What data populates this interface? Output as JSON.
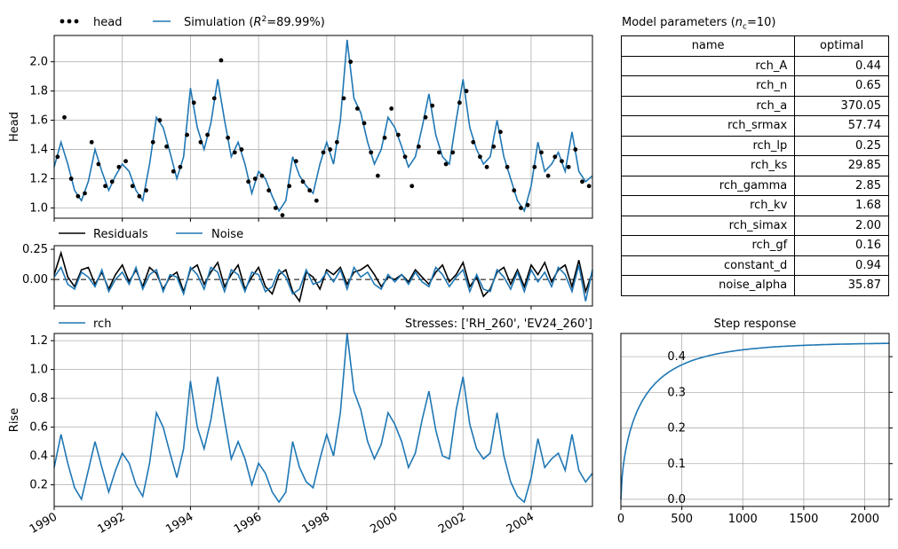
{
  "colors": {
    "simulation": "#1f77b4",
    "head": "#000000",
    "residuals": "#000000",
    "noise": "#1f77b4",
    "grid": "#b0b0b0"
  },
  "params_table": {
    "title": "Model parameters (",
    "title_n": "n",
    "title_sub": "c",
    "title_end": "=10)",
    "headers": [
      "name",
      "optimal"
    ],
    "rows": [
      [
        "rch_A",
        "0.44"
      ],
      [
        "rch_n",
        "0.65"
      ],
      [
        "rch_a",
        "370.05"
      ],
      [
        "rch_srmax",
        "57.74"
      ],
      [
        "rch_lp",
        "0.25"
      ],
      [
        "rch_ks",
        "29.85"
      ],
      [
        "rch_gamma",
        "2.85"
      ],
      [
        "rch_kv",
        "1.68"
      ],
      [
        "rch_simax",
        "2.00"
      ],
      [
        "rch_gf",
        "0.16"
      ],
      [
        "constant_d",
        "0.94"
      ],
      [
        "noise_alpha",
        "35.87"
      ]
    ]
  },
  "chart_data": [
    {
      "id": "head",
      "type": "line",
      "ylabel": "Head",
      "xlim": [
        1990.0,
        2005.8
      ],
      "ylim": [
        0.93,
        2.18
      ],
      "yticks": [
        "1.0",
        "1.2",
        "1.4",
        "1.6",
        "1.8",
        "2.0"
      ],
      "legend": {
        "head": "head",
        "simulation_prefix": "Simulation (",
        "simulation_r": "R",
        "simulation_sup": "2",
        "simulation_suffix": "=89.99%)"
      },
      "series": [
        {
          "name": "Simulation",
          "style": "line",
          "x": [
            1990.0,
            1990.2,
            1990.4,
            1990.6,
            1990.8,
            1991.0,
            1991.2,
            1991.4,
            1991.6,
            1991.8,
            1992.0,
            1992.2,
            1992.4,
            1992.6,
            1992.8,
            1993.0,
            1993.2,
            1993.4,
            1993.6,
            1993.8,
            1994.0,
            1994.2,
            1994.4,
            1994.6,
            1994.8,
            1995.0,
            1995.2,
            1995.4,
            1995.6,
            1995.8,
            1996.0,
            1996.2,
            1996.4,
            1996.6,
            1996.8,
            1997.0,
            1997.2,
            1997.4,
            1997.6,
            1997.8,
            1998.0,
            1998.2,
            1998.4,
            1998.6,
            1998.8,
            1999.0,
            1999.2,
            1999.4,
            1999.6,
            1999.8,
            2000.0,
            2000.2,
            2000.4,
            2000.6,
            2000.8,
            2001.0,
            2001.2,
            2001.4,
            2001.6,
            2001.8,
            2002.0,
            2002.2,
            2002.4,
            2002.6,
            2002.8,
            2003.0,
            2003.2,
            2003.4,
            2003.6,
            2003.8,
            2004.0,
            2004.2,
            2004.4,
            2004.6,
            2004.8,
            2005.0,
            2005.2,
            2005.4,
            2005.6,
            2005.8
          ],
          "y": [
            1.28,
            1.45,
            1.3,
            1.12,
            1.05,
            1.18,
            1.4,
            1.25,
            1.12,
            1.22,
            1.3,
            1.25,
            1.12,
            1.05,
            1.3,
            1.62,
            1.55,
            1.38,
            1.2,
            1.35,
            1.82,
            1.55,
            1.4,
            1.58,
            1.88,
            1.6,
            1.35,
            1.45,
            1.3,
            1.1,
            1.25,
            1.2,
            1.08,
            0.98,
            1.05,
            1.35,
            1.22,
            1.15,
            1.1,
            1.3,
            1.45,
            1.3,
            1.6,
            2.15,
            1.75,
            1.65,
            1.45,
            1.3,
            1.4,
            1.62,
            1.55,
            1.42,
            1.28,
            1.35,
            1.55,
            1.78,
            1.5,
            1.35,
            1.3,
            1.6,
            1.88,
            1.55,
            1.4,
            1.3,
            1.35,
            1.6,
            1.35,
            1.2,
            1.05,
            0.98,
            1.15,
            1.45,
            1.25,
            1.3,
            1.38,
            1.25,
            1.52,
            1.25,
            1.18,
            1.22
          ]
        },
        {
          "name": "head",
          "style": "dots",
          "x": [
            1990.1,
            1990.3,
            1990.5,
            1990.7,
            1990.9,
            1991.1,
            1991.3,
            1991.5,
            1991.7,
            1991.9,
            1992.1,
            1992.3,
            1992.5,
            1992.7,
            1992.9,
            1993.1,
            1993.3,
            1993.5,
            1993.7,
            1993.9,
            1994.1,
            1994.3,
            1994.5,
            1994.7,
            1994.9,
            1995.1,
            1995.3,
            1995.5,
            1995.7,
            1995.9,
            1996.1,
            1996.3,
            1996.5,
            1996.7,
            1996.9,
            1997.1,
            1997.3,
            1997.5,
            1997.7,
            1997.9,
            1998.1,
            1998.3,
            1998.5,
            1998.7,
            1998.9,
            1999.1,
            1999.3,
            1999.5,
            1999.7,
            1999.9,
            2000.1,
            2000.3,
            2000.5,
            2000.7,
            2000.9,
            2001.1,
            2001.3,
            2001.5,
            2001.7,
            2001.9,
            2002.1,
            2002.3,
            2002.5,
            2002.7,
            2002.9,
            2003.1,
            2003.3,
            2003.5,
            2003.7,
            2003.9,
            2004.1,
            2004.3,
            2004.5,
            2004.7,
            2004.9,
            2005.1,
            2005.3,
            2005.5,
            2005.7
          ],
          "y": [
            1.35,
            1.62,
            1.2,
            1.08,
            1.1,
            1.45,
            1.3,
            1.15,
            1.18,
            1.28,
            1.32,
            1.15,
            1.08,
            1.12,
            1.45,
            1.6,
            1.42,
            1.25,
            1.28,
            1.5,
            1.72,
            1.45,
            1.5,
            1.75,
            2.01,
            1.48,
            1.38,
            1.4,
            1.18,
            1.2,
            1.22,
            1.12,
            1.0,
            0.95,
            1.15,
            1.32,
            1.18,
            1.12,
            1.05,
            1.38,
            1.4,
            1.45,
            1.75,
            2.0,
            1.68,
            1.58,
            1.38,
            1.22,
            1.48,
            1.68,
            1.5,
            1.35,
            1.15,
            1.42,
            1.62,
            1.7,
            1.38,
            1.3,
            1.38,
            1.72,
            1.8,
            1.45,
            1.35,
            1.28,
            1.42,
            1.52,
            1.28,
            1.12,
            1.0,
            1.02,
            1.28,
            1.38,
            1.22,
            1.35,
            1.32,
            1.28,
            1.4,
            1.18,
            1.15
          ]
        }
      ]
    },
    {
      "id": "residuals",
      "type": "line",
      "xlim": [
        1990.0,
        2005.8
      ],
      "ylim": [
        -0.22,
        0.28
      ],
      "yticks": [
        "0.00",
        "0.25"
      ],
      "series": [
        {
          "name": "Residuals",
          "y": [
            0.04,
            0.22,
            0.02,
            -0.06,
            0.08,
            0.1,
            -0.04,
            0.06,
            -0.08,
            0.04,
            0.12,
            -0.02,
            0.08,
            -0.06,
            0.1,
            0.05,
            -0.08,
            0.02,
            0.06,
            -0.1,
            0.08,
            0.12,
            -0.04,
            0.06,
            0.14,
            -0.06,
            0.04,
            0.12,
            -0.08,
            0.02,
            0.1,
            -0.06,
            -0.12,
            0.04,
            0.08,
            -0.1,
            -0.18,
            0.06,
            0.02,
            -0.08,
            0.08,
            0.04,
            0.1,
            -0.04,
            0.06,
            0.08,
            0.12,
            0.04,
            -0.06,
            0.02,
            0.0,
            0.04,
            -0.02,
            0.08,
            0.02,
            -0.04,
            0.06,
            0.12,
            -0.02,
            0.04,
            0.14,
            -0.06,
            0.02,
            -0.14,
            -0.08,
            0.06,
            0.1,
            -0.04,
            0.08,
            -0.06,
            0.12,
            0.04,
            0.14,
            -0.02,
            0.08,
            0.12,
            -0.06,
            0.16,
            -0.1,
            0.06
          ]
        },
        {
          "name": "Noise",
          "y": [
            0.02,
            0.1,
            -0.04,
            -0.08,
            0.06,
            0.02,
            -0.06,
            0.08,
            -0.1,
            0.0,
            0.06,
            -0.04,
            0.1,
            -0.08,
            0.04,
            0.08,
            -0.1,
            0.04,
            0.02,
            -0.12,
            0.1,
            0.04,
            -0.08,
            0.1,
            0.06,
            -0.1,
            0.08,
            0.04,
            -0.1,
            0.06,
            0.04,
            -0.1,
            -0.06,
            0.08,
            0.02,
            -0.12,
            -0.08,
            0.08,
            -0.04,
            -0.02,
            0.06,
            -0.02,
            0.08,
            -0.08,
            0.1,
            0.02,
            0.06,
            -0.04,
            -0.08,
            0.04,
            -0.02,
            0.04,
            -0.04,
            0.06,
            -0.02,
            -0.06,
            0.1,
            0.04,
            -0.06,
            0.02,
            0.08,
            -0.1,
            0.04,
            -0.08,
            -0.1,
            0.08,
            0.02,
            -0.08,
            0.06,
            -0.1,
            0.08,
            -0.02,
            0.06,
            -0.06,
            0.1,
            0.04,
            -0.1,
            0.12,
            -0.18,
            0.08
          ]
        }
      ]
    },
    {
      "id": "rise",
      "type": "line",
      "ylabel": "Rise",
      "title_right": "Stresses: ['RH_260', 'EV24_260']",
      "xlim": [
        1990.0,
        2005.8
      ],
      "ylim": [
        0.05,
        1.25
      ],
      "yticks": [
        "0.2",
        "0.4",
        "0.6",
        "0.8",
        "1.0",
        "1.2"
      ],
      "xticks": [
        "1990",
        "1992",
        "1994",
        "1996",
        "1998",
        "2000",
        "2002",
        "2004"
      ],
      "series": [
        {
          "name": "rch",
          "x": [
            1990.0,
            1990.2,
            1990.4,
            1990.6,
            1990.8,
            1991.0,
            1991.2,
            1991.4,
            1991.6,
            1991.8,
            1992.0,
            1992.2,
            1992.4,
            1992.6,
            1992.8,
            1993.0,
            1993.2,
            1993.4,
            1993.6,
            1993.8,
            1994.0,
            1994.2,
            1994.4,
            1994.6,
            1994.8,
            1995.0,
            1995.2,
            1995.4,
            1995.6,
            1995.8,
            1996.0,
            1996.2,
            1996.4,
            1996.6,
            1996.8,
            1997.0,
            1997.2,
            1997.4,
            1997.6,
            1997.8,
            1998.0,
            1998.2,
            1998.4,
            1998.6,
            1998.8,
            1999.0,
            1999.2,
            1999.4,
            1999.6,
            1999.8,
            2000.0,
            2000.2,
            2000.4,
            2000.6,
            2000.8,
            2001.0,
            2001.2,
            2001.4,
            2001.6,
            2001.8,
            2002.0,
            2002.2,
            2002.4,
            2002.6,
            2002.8,
            2003.0,
            2003.2,
            2003.4,
            2003.6,
            2003.8,
            2004.0,
            2004.2,
            2004.4,
            2004.6,
            2004.8,
            2005.0,
            2005.2,
            2005.4,
            2005.6,
            2005.8
          ],
          "y": [
            0.32,
            0.55,
            0.35,
            0.18,
            0.1,
            0.3,
            0.5,
            0.32,
            0.15,
            0.3,
            0.42,
            0.35,
            0.2,
            0.12,
            0.35,
            0.7,
            0.6,
            0.42,
            0.25,
            0.45,
            0.92,
            0.6,
            0.45,
            0.65,
            0.95,
            0.65,
            0.38,
            0.5,
            0.38,
            0.2,
            0.35,
            0.28,
            0.15,
            0.08,
            0.15,
            0.5,
            0.32,
            0.22,
            0.18,
            0.38,
            0.55,
            0.4,
            0.7,
            1.25,
            0.85,
            0.72,
            0.5,
            0.38,
            0.48,
            0.7,
            0.62,
            0.5,
            0.32,
            0.42,
            0.65,
            0.85,
            0.58,
            0.4,
            0.38,
            0.72,
            0.95,
            0.62,
            0.45,
            0.38,
            0.42,
            0.7,
            0.4,
            0.22,
            0.12,
            0.08,
            0.25,
            0.52,
            0.32,
            0.38,
            0.42,
            0.3,
            0.55,
            0.3,
            0.22,
            0.28
          ]
        }
      ]
    },
    {
      "id": "step",
      "type": "line",
      "title": "Step response",
      "xlim": [
        0,
        2200
      ],
      "ylim": [
        -0.02,
        0.465
      ],
      "xticks": [
        "0",
        "500",
        "1000",
        "1500",
        "2000"
      ],
      "yticks": [
        "0.0",
        "0.1",
        "0.2",
        "0.3",
        "0.4"
      ],
      "series": [
        {
          "name": "step",
          "final_value": 0.44,
          "a": 370.05,
          "n": 0.65
        }
      ]
    }
  ]
}
